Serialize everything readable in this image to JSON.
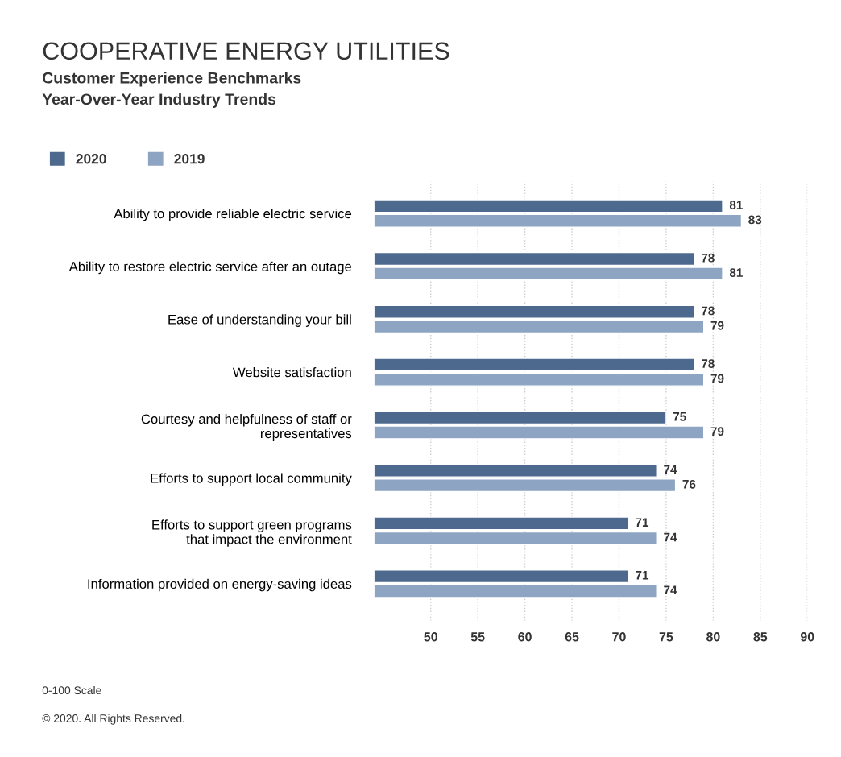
{
  "chart_data": {
    "type": "bar",
    "orientation": "horizontal",
    "title": "COOPERATIVE ENERGY UTILITIES",
    "subtitle": "Customer Experience Benchmarks\nYear-Over-Year Industry Trends",
    "categories": [
      "Ability to provide reliable electric service",
      "Ability to restore electric service after an outage",
      "Ease of understanding your bill",
      "Website satisfaction",
      "Courtesy and helpfulness of staff or\nrepresentatives",
      "Efforts to support local community",
      "Efforts to support green programs\nthat impact the environment",
      "Information provided on energy-saving ideas"
    ],
    "series": [
      {
        "name": "2020",
        "color": "#4d6a8e",
        "values": [
          81,
          78,
          78,
          78,
          75,
          74,
          71,
          71
        ]
      },
      {
        "name": "2019",
        "color": "#8da5c2",
        "values": [
          83,
          81,
          79,
          79,
          79,
          76,
          74,
          74
        ]
      }
    ],
    "xlim": [
      44,
      90
    ],
    "xticks": [
      50,
      55,
      60,
      65,
      70,
      75,
      80,
      85,
      90
    ],
    "grid": "x",
    "legend": "top left",
    "data_labels": true,
    "annotations": [
      "0-100 Scale",
      "© 2020. All Rights Reserved."
    ]
  }
}
